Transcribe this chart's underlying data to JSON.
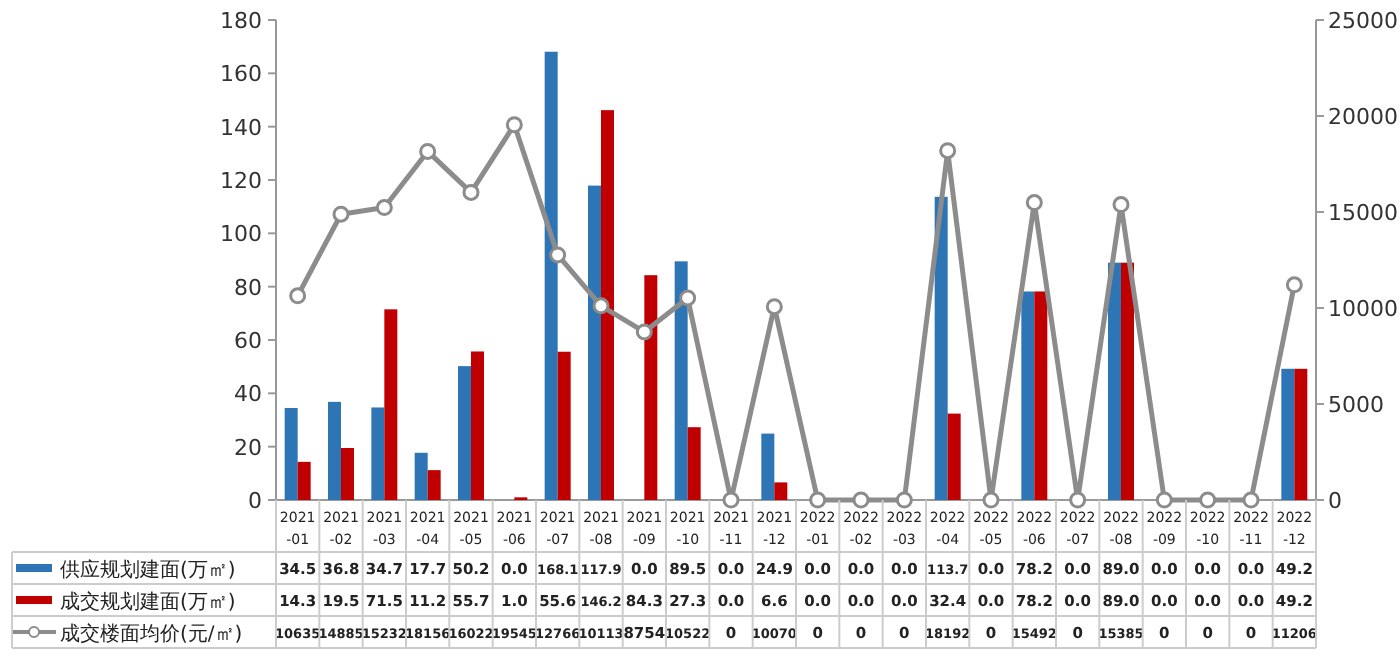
{
  "chart_data": {
    "type": "bar",
    "categories": [
      "2021-01",
      "2021-02",
      "2021-03",
      "2021-04",
      "2021-05",
      "2021-06",
      "2021-07",
      "2021-08",
      "2021-09",
      "2021-10",
      "2021-11",
      "2021-12",
      "2022-01",
      "2022-02",
      "2022-03",
      "2022-04",
      "2022-05",
      "2022-06",
      "2022-07",
      "2022-08",
      "2022-09",
      "2022-10",
      "2022-11",
      "2022-12"
    ],
    "series": [
      {
        "name": "供应规划建面(万㎡)",
        "color": "#2e75b6",
        "values": [
          34.5,
          36.8,
          34.7,
          17.7,
          50.2,
          0.0,
          168.1,
          117.9,
          0.0,
          89.5,
          0.0,
          24.9,
          0.0,
          0.0,
          0.0,
          113.7,
          0.0,
          78.2,
          0.0,
          89.0,
          0.0,
          0.0,
          0.0,
          49.2
        ],
        "value_labels": [
          "34.5",
          "36.8",
          "34.7",
          "17.7",
          "50.2",
          "0.0",
          "168.1",
          "117.9",
          "0.0",
          "89.5",
          "0.0",
          "24.9",
          "0.0",
          "0.0",
          "0.0",
          "113.7",
          "0.0",
          "78.2",
          "0.0",
          "89.0",
          "0.0",
          "0.0",
          "0.0",
          "49.2"
        ]
      },
      {
        "name": "成交规划建面(万㎡)",
        "color": "#c00000",
        "values": [
          14.3,
          19.5,
          71.5,
          11.2,
          55.7,
          1.0,
          55.6,
          146.2,
          84.3,
          27.3,
          0.0,
          6.6,
          0.0,
          0.0,
          0.0,
          32.4,
          0.0,
          78.2,
          0.0,
          89.0,
          0.0,
          0.0,
          0.0,
          49.2
        ],
        "value_labels": [
          "14.3",
          "19.5",
          "71.5",
          "11.2",
          "55.7",
          "1.0",
          "55.6",
          "146.2",
          "84.3",
          "27.3",
          "0.0",
          "6.6",
          "0.0",
          "0.0",
          "0.0",
          "32.4",
          "0.0",
          "78.2",
          "0.0",
          "89.0",
          "0.0",
          "0.0",
          "0.0",
          "49.2"
        ]
      },
      {
        "name": "成交楼面均价(元/㎡)",
        "type": "line",
        "axis": "y2",
        "color": "#8c8c8c",
        "marker": "circle",
        "values": [
          10635,
          14885,
          15232,
          18156,
          16022,
          19545,
          12766,
          10113,
          8754,
          10522,
          0,
          10070,
          0,
          0,
          0,
          18192,
          0,
          15492,
          0,
          15385,
          0,
          0,
          0,
          11206
        ],
        "value_labels": [
          "10635",
          "14885",
          "15232",
          "18156",
          "16022",
          "19545",
          "12766",
          "10113",
          "8754",
          "10522",
          "0",
          "10070",
          "0",
          "0",
          "0",
          "18192",
          "0",
          "15492",
          "0",
          "15385",
          "0",
          "0",
          "0",
          "11206"
        ]
      }
    ],
    "ylim": [
      0,
      180
    ],
    "yticks": [
      0,
      20,
      40,
      60,
      80,
      100,
      120,
      140,
      160,
      180
    ],
    "y2lim": [
      0,
      25000
    ],
    "y2ticks": [
      0,
      5000,
      10000,
      15000,
      20000,
      25000
    ],
    "legend": "bottom",
    "grid": false
  }
}
